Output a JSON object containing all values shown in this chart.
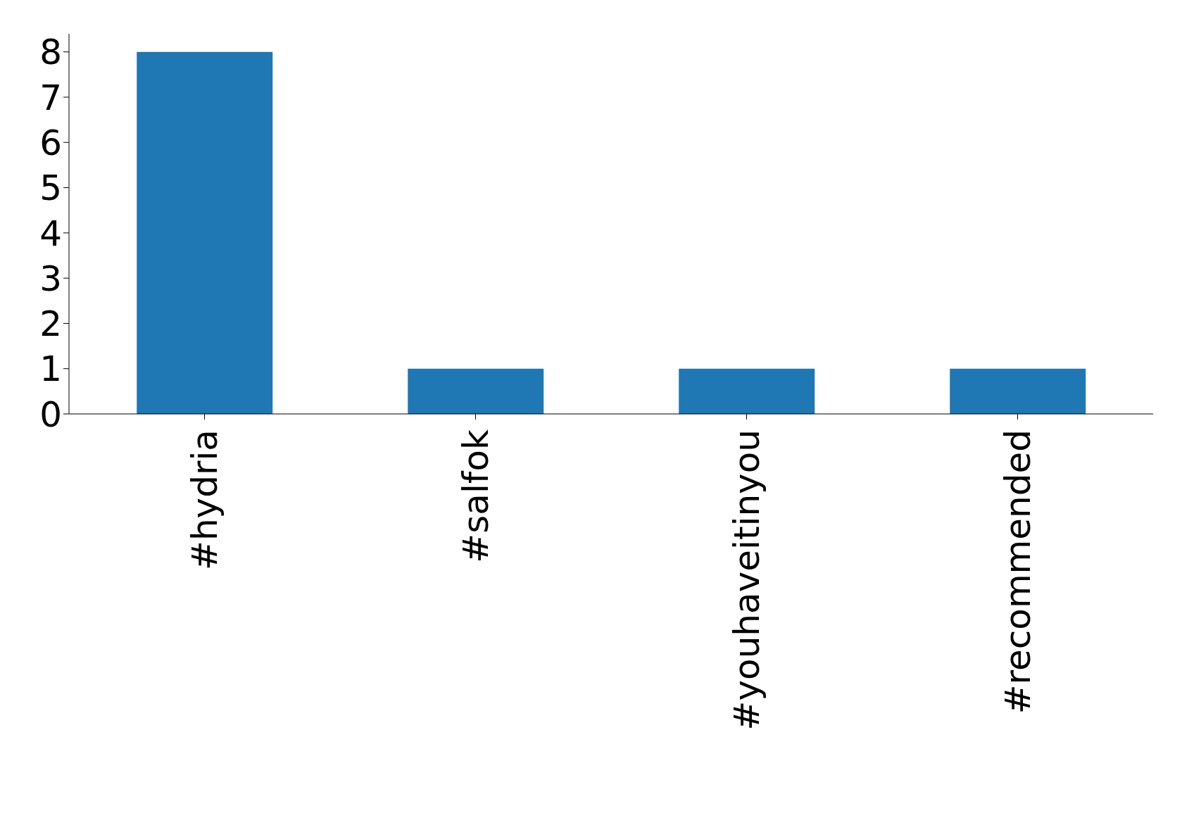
{
  "chart_data": {
    "type": "bar",
    "categories": [
      "#hydria",
      "#salfok",
      "#youhaveitinyou",
      "#recommended"
    ],
    "values": [
      8,
      1,
      1,
      1
    ],
    "color": "#1f77b4",
    "ylim": [
      0,
      8.4
    ],
    "yticks": [
      0,
      1,
      2,
      3,
      4,
      5,
      6,
      7,
      8
    ],
    "grid": false,
    "legend": false
  }
}
